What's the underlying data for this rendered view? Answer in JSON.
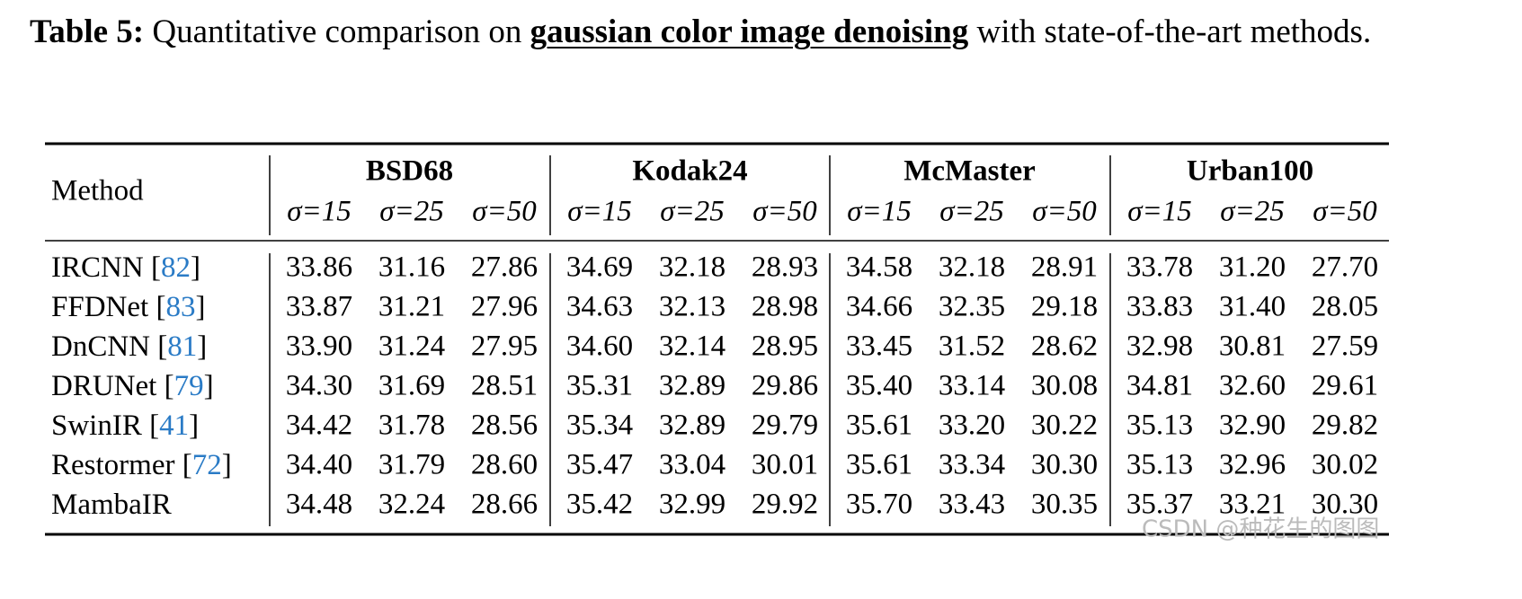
{
  "caption": {
    "label": "Table 5:",
    "text_before": "Quantitative comparison on",
    "emphasis": "gaussian color image denoising",
    "text_after": "with state-of-the-art methods."
  },
  "table": {
    "method_header": "Method",
    "datasets": [
      {
        "name": "BSD68",
        "sigmas": [
          "σ=15",
          "σ=25",
          "σ=50"
        ]
      },
      {
        "name": "Kodak24",
        "sigmas": [
          "σ=15",
          "σ=25",
          "σ=50"
        ]
      },
      {
        "name": "McMaster",
        "sigmas": [
          "σ=15",
          "σ=25",
          "σ=50"
        ]
      },
      {
        "name": "Urban100",
        "sigmas": [
          "σ=15",
          "σ=25",
          "σ=50"
        ]
      }
    ],
    "ref_color": "#2a7bc6",
    "rows": [
      {
        "method": "IRCNN",
        "ref": "82",
        "values": [
          "33.86",
          "31.16",
          "27.86",
          "34.69",
          "32.18",
          "28.93",
          "34.58",
          "32.18",
          "28.91",
          "33.78",
          "31.20",
          "27.70"
        ],
        "colors": [
          "#000",
          "#000",
          "#000",
          "#000",
          "#000",
          "#000",
          "#000",
          "#000",
          "#000",
          "#000",
          "#000",
          "#000"
        ]
      },
      {
        "method": "FFDNet",
        "ref": "83",
        "values": [
          "33.87",
          "31.21",
          "27.96",
          "34.63",
          "32.13",
          "28.98",
          "34.66",
          "32.35",
          "29.18",
          "33.83",
          "31.40",
          "28.05"
        ],
        "colors": [
          "#000",
          "#000",
          "#000",
          "#000",
          "#000",
          "#000",
          "#000",
          "#000",
          "#000",
          "#000",
          "#000",
          "#000"
        ]
      },
      {
        "method": "DnCNN",
        "ref": "81",
        "values": [
          "33.90",
          "31.24",
          "27.95",
          "34.60",
          "32.14",
          "28.95",
          "33.45",
          "31.52",
          "28.62",
          "32.98",
          "30.81",
          "27.59"
        ],
        "colors": [
          "#000",
          "#000",
          "#000",
          "#000",
          "#000",
          "#000",
          "#000",
          "#000",
          "#000",
          "#000",
          "#000",
          "#000"
        ]
      },
      {
        "method": "DRUNet",
        "ref": "79",
        "values": [
          "34.30",
          "31.69",
          "28.51",
          "35.31",
          "32.89",
          "29.86",
          "35.40",
          "33.14",
          "30.08",
          "34.81",
          "32.60",
          "29.61"
        ],
        "colors": [
          "#000",
          "#000",
          "#000",
          "#000",
          "#000",
          "#000",
          "#000",
          "#000",
          "#000",
          "#000",
          "#000",
          "#000"
        ]
      },
      {
        "method": "SwinIR",
        "ref": "41",
        "values": [
          "34.42",
          "31.78",
          "28.56",
          "35.34",
          "32.89",
          "29.79",
          "35.61",
          "33.20",
          "30.22",
          "35.13",
          "32.90",
          "29.82"
        ],
        "colors": [
          "#1414e6",
          "#000",
          "#000",
          "#000",
          "#000",
          "#000",
          "#000",
          "#000",
          "#000",
          "#000",
          "#000",
          "#000"
        ]
      },
      {
        "method": "Restormer",
        "ref": "72",
        "values": [
          "34.40",
          "31.79",
          "28.60",
          "35.47",
          "33.04",
          "30.01",
          "35.61",
          "33.34",
          "30.30",
          "35.13",
          "32.96",
          "30.02"
        ],
        "colors": [
          "#000",
          "#1414e6",
          "#1414e6",
          "#ec1c24",
          "#ec1c24",
          "#ec1c24",
          "#1414e6",
          "#1414e6",
          "#1414e6",
          "#1414e6",
          "#1414e6",
          "#1414e6"
        ]
      },
      {
        "method": "MambaIR",
        "values": [
          "34.48",
          "32.24",
          "28.66",
          "35.42",
          "32.99",
          "29.92",
          "35.70",
          "33.43",
          "30.35",
          "35.37",
          "33.21",
          "30.30"
        ],
        "colors": [
          "#ec1c24",
          "#ec1c24",
          "#ec1c24",
          "#1414e6",
          "#1414e6",
          "#1414e6",
          "#ec1c24",
          "#ec1c24",
          "#ec1c24",
          "#ec1c24",
          "#ec1c24",
          "#ec1c24"
        ]
      }
    ]
  },
  "watermark": "CSDN @种花生的图图"
}
